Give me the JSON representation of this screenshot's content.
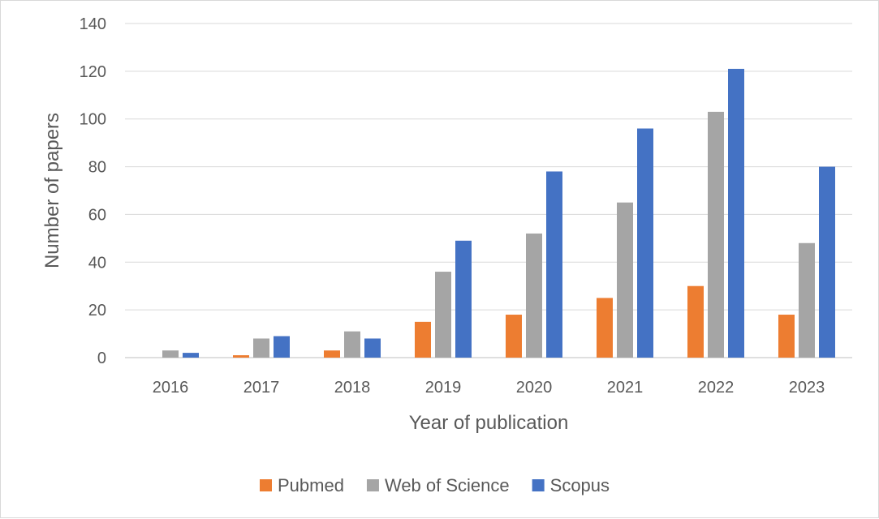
{
  "chart_data": {
    "type": "bar",
    "title": "",
    "xlabel": "Year of publication",
    "ylabel": "Number of papers",
    "categories": [
      "2016",
      "2017",
      "2018",
      "2019",
      "2020",
      "2021",
      "2022",
      "2023"
    ],
    "series": [
      {
        "name": "Pubmed",
        "color": "#ed7d31",
        "values": [
          0,
          1,
          3,
          15,
          18,
          25,
          30,
          18
        ]
      },
      {
        "name": "Web of Science",
        "color": "#a5a5a5",
        "values": [
          3,
          8,
          11,
          36,
          52,
          65,
          103,
          48
        ]
      },
      {
        "name": "Scopus",
        "color": "#4472c4",
        "values": [
          2,
          9,
          8,
          49,
          78,
          96,
          121,
          80
        ]
      }
    ],
    "ylim": [
      0,
      140
    ],
    "yticks": [
      "0",
      "20",
      "40",
      "60",
      "80",
      "100",
      "120",
      "140"
    ],
    "grid": true,
    "legend_position": "bottom"
  }
}
